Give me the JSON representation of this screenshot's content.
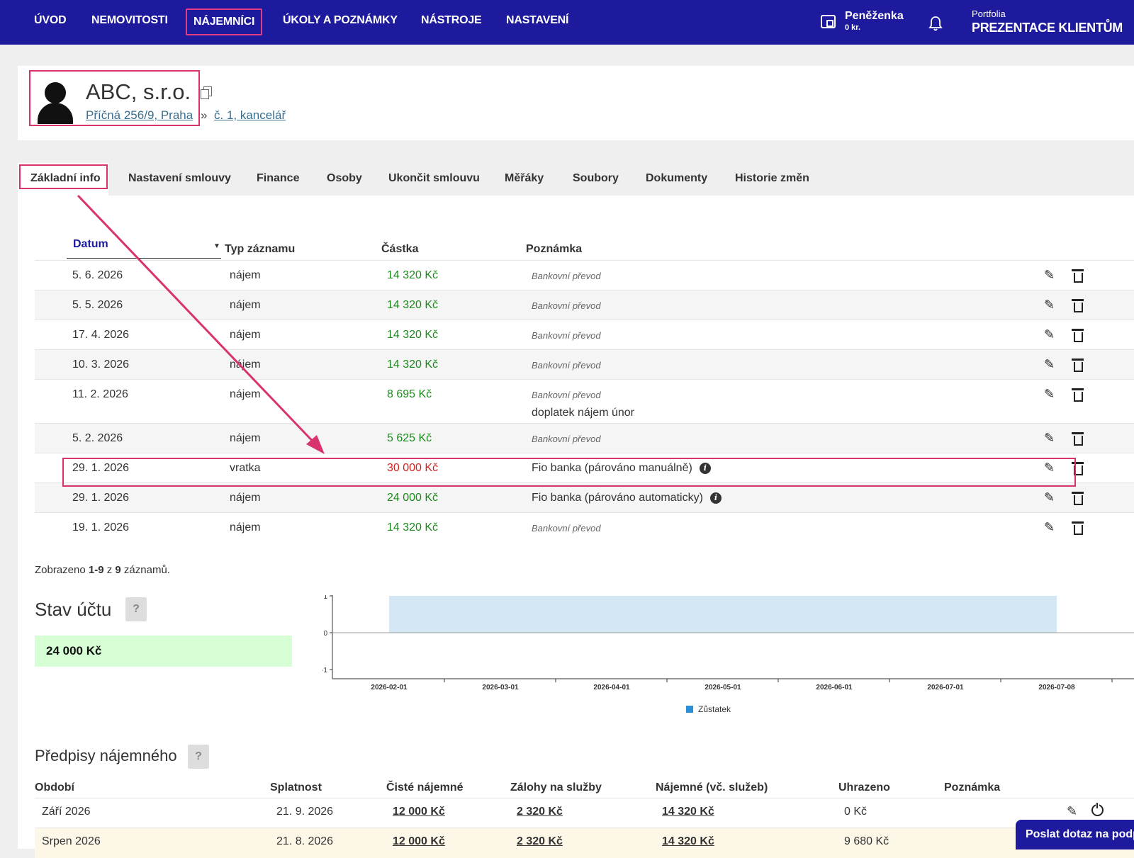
{
  "nav": {
    "items": [
      "ÚVOD",
      "NEMOVITOSTI",
      "NÁJEMNÍCI",
      "ÚKOLY A POZNÁMKY",
      "NÁSTROJE",
      "NASTAVENÍ"
    ],
    "active": "NÁJEMNÍCI",
    "wallet_label": "Peněženka",
    "wallet_amount": "0 kr.",
    "portfolio_label": "Portfolia",
    "portfolio_name": "PREZENTACE KLIENTŮM"
  },
  "tenant": {
    "name": "ABC, s.r.o.",
    "address": "Příčná 256/9, Praha",
    "separator": "»",
    "unit": "č. 1, kancelář"
  },
  "tabs": [
    "Základní info",
    "Nastavení smlouvy",
    "Finance",
    "Osoby",
    "Ukončit smlouvu",
    "Měřáky",
    "Soubory",
    "Dokumenty",
    "Historie změn"
  ],
  "payments": {
    "columns": {
      "date": "Datum",
      "type": "Typ záznamu",
      "amount": "Částka",
      "note": "Poznámka"
    },
    "rows": [
      {
        "date": "5. 6. 2026",
        "type": "nájem",
        "amount": "14 320 Kč",
        "note": "Bankovní převod"
      },
      {
        "date": "5. 5. 2026",
        "type": "nájem",
        "amount": "14 320 Kč",
        "note": "Bankovní převod"
      },
      {
        "date": "17. 4. 2026",
        "type": "nájem",
        "amount": "14 320 Kč",
        "note": "Bankovní převod"
      },
      {
        "date": "10. 3. 2026",
        "type": "nájem",
        "amount": "14 320 Kč",
        "note": "Bankovní převod"
      },
      {
        "date": "11. 2. 2026",
        "type": "nájem",
        "amount": "8 695 Kč",
        "note": "Bankovní převod",
        "note2": "doplatek nájem únor"
      },
      {
        "date": "5. 2. 2026",
        "type": "nájem",
        "amount": "5 625 Kč",
        "note": "Bankovní převod"
      },
      {
        "date": "29. 1. 2026",
        "type": "vratka",
        "amount": "30 000 Kč",
        "note": "Fio banka (párováno manuálně)"
      },
      {
        "date": "29. 1. 2026",
        "type": "nájem",
        "amount": "24 000 Kč",
        "note": "Fio banka (párováno automaticky)"
      },
      {
        "date": "19. 1. 2026",
        "type": "nájem",
        "amount": "14 320 Kč",
        "note": "Bankovní převod"
      }
    ],
    "summary_prefix": "Zobrazeno ",
    "summary_range": "1-9",
    "summary_mid": " z ",
    "summary_total": "9",
    "summary_suffix": " záznamů."
  },
  "account": {
    "title": "Stav účtu",
    "help": "?",
    "balance": "24 000 Kč"
  },
  "chart_data": {
    "type": "area",
    "x": [
      "2026-02-01",
      "2026-03-01",
      "2026-04-01",
      "2026-05-01",
      "2026-06-01",
      "2026-07-01",
      "2026-07-08"
    ],
    "series": [
      {
        "name": "Zůstatek",
        "x_start": "2026-02-01",
        "x_end": "2026-07-08",
        "value": 1,
        "color": "#d3e7f5"
      }
    ],
    "yticks": [
      "1",
      "0",
      "-1"
    ],
    "ylim": [
      -1,
      1
    ],
    "legend_color": "#2b8fd6",
    "legend_position": "bottom"
  },
  "prescriptions": {
    "title": "Předpisy nájemného",
    "help": "?",
    "columns": [
      "Období",
      "Splatnost",
      "Čisté nájemné",
      "Zálohy na služby",
      "Nájemné (vč. služeb)",
      "Uhrazeno",
      "Poznámka"
    ],
    "rows": [
      {
        "period": "Září 2026",
        "due": "21. 9. 2026",
        "net": "12 000 Kč",
        "services": "2 320 Kč",
        "total": "14 320 Kč",
        "paid": "0 Kč"
      },
      {
        "period": "Srpen 2026",
        "due": "21. 8. 2026",
        "net": "12 000 Kč",
        "services": "2 320 Kč",
        "total": "14 320 Kč",
        "paid": "9 680 Kč"
      }
    ]
  },
  "chat_button": "Poslat dotaz na podp"
}
